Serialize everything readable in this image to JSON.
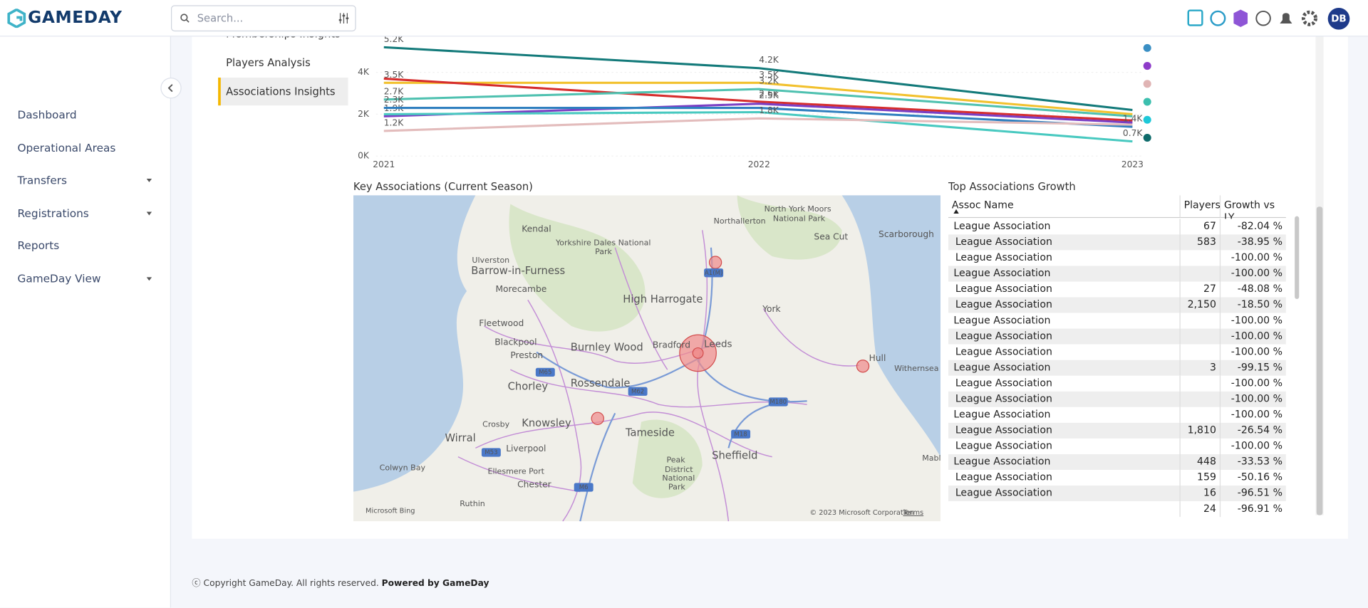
{
  "header": {
    "brand": "GAMEDAY",
    "search_placeholder": "Search...",
    "avatar": "DB"
  },
  "sidebar": {
    "items": [
      {
        "label": "Dashboard",
        "dropdown": false
      },
      {
        "label": "Operational Areas",
        "dropdown": false
      },
      {
        "label": "Transfers",
        "dropdown": true
      },
      {
        "label": "Registrations",
        "dropdown": true
      },
      {
        "label": "Reports",
        "dropdown": false
      },
      {
        "label": "GameDay View",
        "dropdown": true
      }
    ]
  },
  "subnav": {
    "items": [
      "Memberships Insights",
      "Players Analysis",
      "Associations Insights"
    ],
    "active": 2
  },
  "line_chart": {
    "type": "line",
    "categories": [
      "2021",
      "2022",
      "2023"
    ],
    "ylim": [
      0,
      5.5
    ],
    "yticks": [
      {
        "value": 0,
        "label": "0K"
      },
      {
        "value": 2,
        "label": "2K"
      },
      {
        "value": 4,
        "label": "4K"
      }
    ],
    "series": [
      {
        "color": "#137a7a",
        "values": [
          5.2,
          4.2,
          2.2
        ],
        "value_labels": [
          "5.2K",
          "4.2K",
          null
        ]
      },
      {
        "color": "#f2c12e",
        "values": [
          3.5,
          3.5,
          2.0
        ],
        "value_labels": [
          "3.5K",
          "3.5K",
          null
        ]
      },
      {
        "color": "#d62d2d",
        "values": [
          3.7,
          2.6,
          1.7
        ],
        "value_labels": [
          null,
          "2.6K",
          null
        ]
      },
      {
        "color": "#4fc1b0",
        "values": [
          2.7,
          3.2,
          1.9
        ],
        "value_labels": [
          "2.7K",
          "3.2K",
          null
        ]
      },
      {
        "color": "#7b3fc4",
        "values": [
          1.9,
          2.5,
          1.6
        ],
        "value_labels": [
          "1.9K",
          "2.5K",
          null
        ]
      },
      {
        "color": "#2f7fbf",
        "values": [
          2.3,
          2.3,
          1.4
        ],
        "value_labels": [
          "2.3K",
          null,
          "1.4K"
        ]
      },
      {
        "color": "#48c9c0",
        "values": [
          2.0,
          2.1,
          0.7
        ],
        "value_labels": [
          null,
          null,
          "0.7K"
        ]
      },
      {
        "color": "#e3bcbc",
        "values": [
          1.2,
          1.8,
          1.5
        ],
        "value_labels": [
          "1.2K",
          "1.8K",
          null
        ]
      }
    ],
    "legend_colors": [
      "#3a8fc4",
      "#8e3bc9",
      "#e0b4b4",
      "#3cbfae",
      "#1ec8d8",
      "#0e6b6b"
    ]
  },
  "map": {
    "title": "Key Associations (Current Season)",
    "labels": [
      "Kendal",
      "Northallerton",
      "North York Moors",
      "National Park",
      "Sea Cut",
      "Scarborough",
      "Yorkshire Dales National",
      "Park",
      "Ulverston",
      "Barrow-in-Furness",
      "Morecambe",
      "High Harrogate",
      "York",
      "Fleetwood",
      "Blackpool",
      "Preston",
      "Burnley Wood",
      "Bradford",
      "Leeds",
      "Hull",
      "Withernsea",
      "Chorley",
      "Rossendale",
      "Crosby",
      "Knowsley",
      "Tameside",
      "Wirral",
      "Liverpool",
      "Sheffield",
      "Ellesmere Port",
      "Peak",
      "District",
      "National",
      "Park",
      "Chester",
      "Colwyn Bay",
      "Ruthin",
      "Mable"
    ],
    "shields": [
      "A1(M)",
      "M65",
      "M62",
      "M180",
      "M18",
      "M53",
      "M6"
    ],
    "logo": "Microsoft Bing",
    "attribution": "© 2023 Microsoft Corporation",
    "terms": "Terms"
  },
  "table": {
    "title": "Top Associations Growth",
    "columns": [
      "Assoc Name",
      "Players",
      "Growth vs LY"
    ],
    "rows": [
      [
        "League Association",
        "67",
        "-82.04 %"
      ],
      [
        "League Association",
        "583",
        "-38.95 %"
      ],
      [
        "League Association",
        null,
        "-100.00 %"
      ],
      [
        "League Association",
        null,
        "-100.00 %"
      ],
      [
        "League Association",
        "27",
        "-48.08 %"
      ],
      [
        "League Association",
        "2,150",
        "-18.50 %"
      ],
      [
        "League Association",
        null,
        "-100.00 %"
      ],
      [
        "League Association",
        null,
        "-100.00 %"
      ],
      [
        "League Association",
        null,
        "-100.00 %"
      ],
      [
        "League Association",
        "3",
        "-99.15 %"
      ],
      [
        "League Association",
        null,
        "-100.00 %"
      ],
      [
        "League Association",
        null,
        "-100.00 %"
      ],
      [
        "League Association",
        null,
        "-100.00 %"
      ],
      [
        "League Association",
        "1,810",
        "-26.54 %"
      ],
      [
        "League Association",
        null,
        "-100.00 %"
      ],
      [
        "League Association",
        "448",
        "-33.53 %"
      ],
      [
        "League Association",
        "159",
        "-50.16 %"
      ],
      [
        "League Association",
        "16",
        "-96.51 %"
      ],
      [
        null,
        "24",
        "-96.91 %"
      ]
    ]
  },
  "footer": {
    "copyright": "Copyright GameDay. All rights reserved.",
    "powered": "Powered by GameDay"
  }
}
